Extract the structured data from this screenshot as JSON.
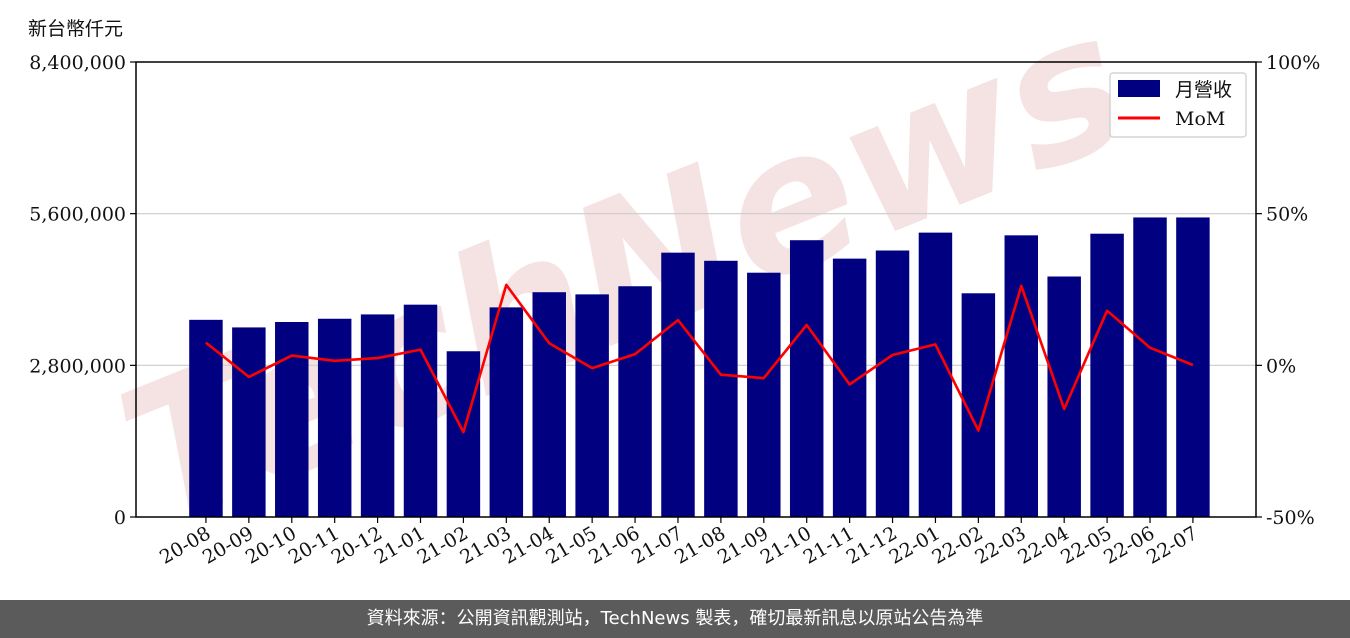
{
  "y_unit_label": "新台幣仟元",
  "footer_text": "資料來源：公開資訊觀測站，TechNews 製表，確切最新訊息以原站公告為準",
  "watermark_text": "TechNews",
  "colors": {
    "bar": "#000080",
    "line": "#ff0000",
    "grid": "#cccccc",
    "watermark": "#e8c0c0",
    "footer_bg": "#5b5b5b"
  },
  "chart_data": {
    "type": "bar",
    "categories": [
      "20-08",
      "20-09",
      "20-10",
      "20-11",
      "20-12",
      "21-01",
      "21-02",
      "21-03",
      "21-04",
      "21-05",
      "21-06",
      "21-07",
      "21-08",
      "21-09",
      "21-10",
      "21-11",
      "21-12",
      "22-01",
      "22-02",
      "22-03",
      "22-04",
      "22-05",
      "22-06",
      "22-07"
    ],
    "series": [
      {
        "name": "月營收",
        "type": "bar",
        "axis": "left",
        "values": [
          3640000,
          3500000,
          3600000,
          3660000,
          3740000,
          3920000,
          3060000,
          3870000,
          4150000,
          4110000,
          4260000,
          4880000,
          4730000,
          4510000,
          5110000,
          4770000,
          4920000,
          5250000,
          4130000,
          5200000,
          4440000,
          5230000,
          5530000,
          5530000
        ]
      },
      {
        "name": "MoM",
        "type": "line",
        "axis": "right",
        "values": [
          7.5,
          -3.8,
          3.2,
          1.5,
          2.4,
          5.2,
          -22.0,
          26.5,
          7.3,
          -0.9,
          3.7,
          14.9,
          -3.1,
          -4.2,
          13.3,
          -6.3,
          3.4,
          6.9,
          -21.5,
          26.2,
          -14.4,
          18.0,
          5.8,
          0.1
        ]
      }
    ],
    "y_left": {
      "lim": [
        0,
        8400000
      ],
      "ticks": [
        "0",
        "2,800,000",
        "5,600,000",
        "8,400,000"
      ]
    },
    "y_right": {
      "lim": [
        -50,
        100
      ],
      "ticks": [
        "-50%",
        "0%",
        "50%",
        "100%"
      ]
    },
    "grid": true,
    "legend_position": "top-right"
  }
}
